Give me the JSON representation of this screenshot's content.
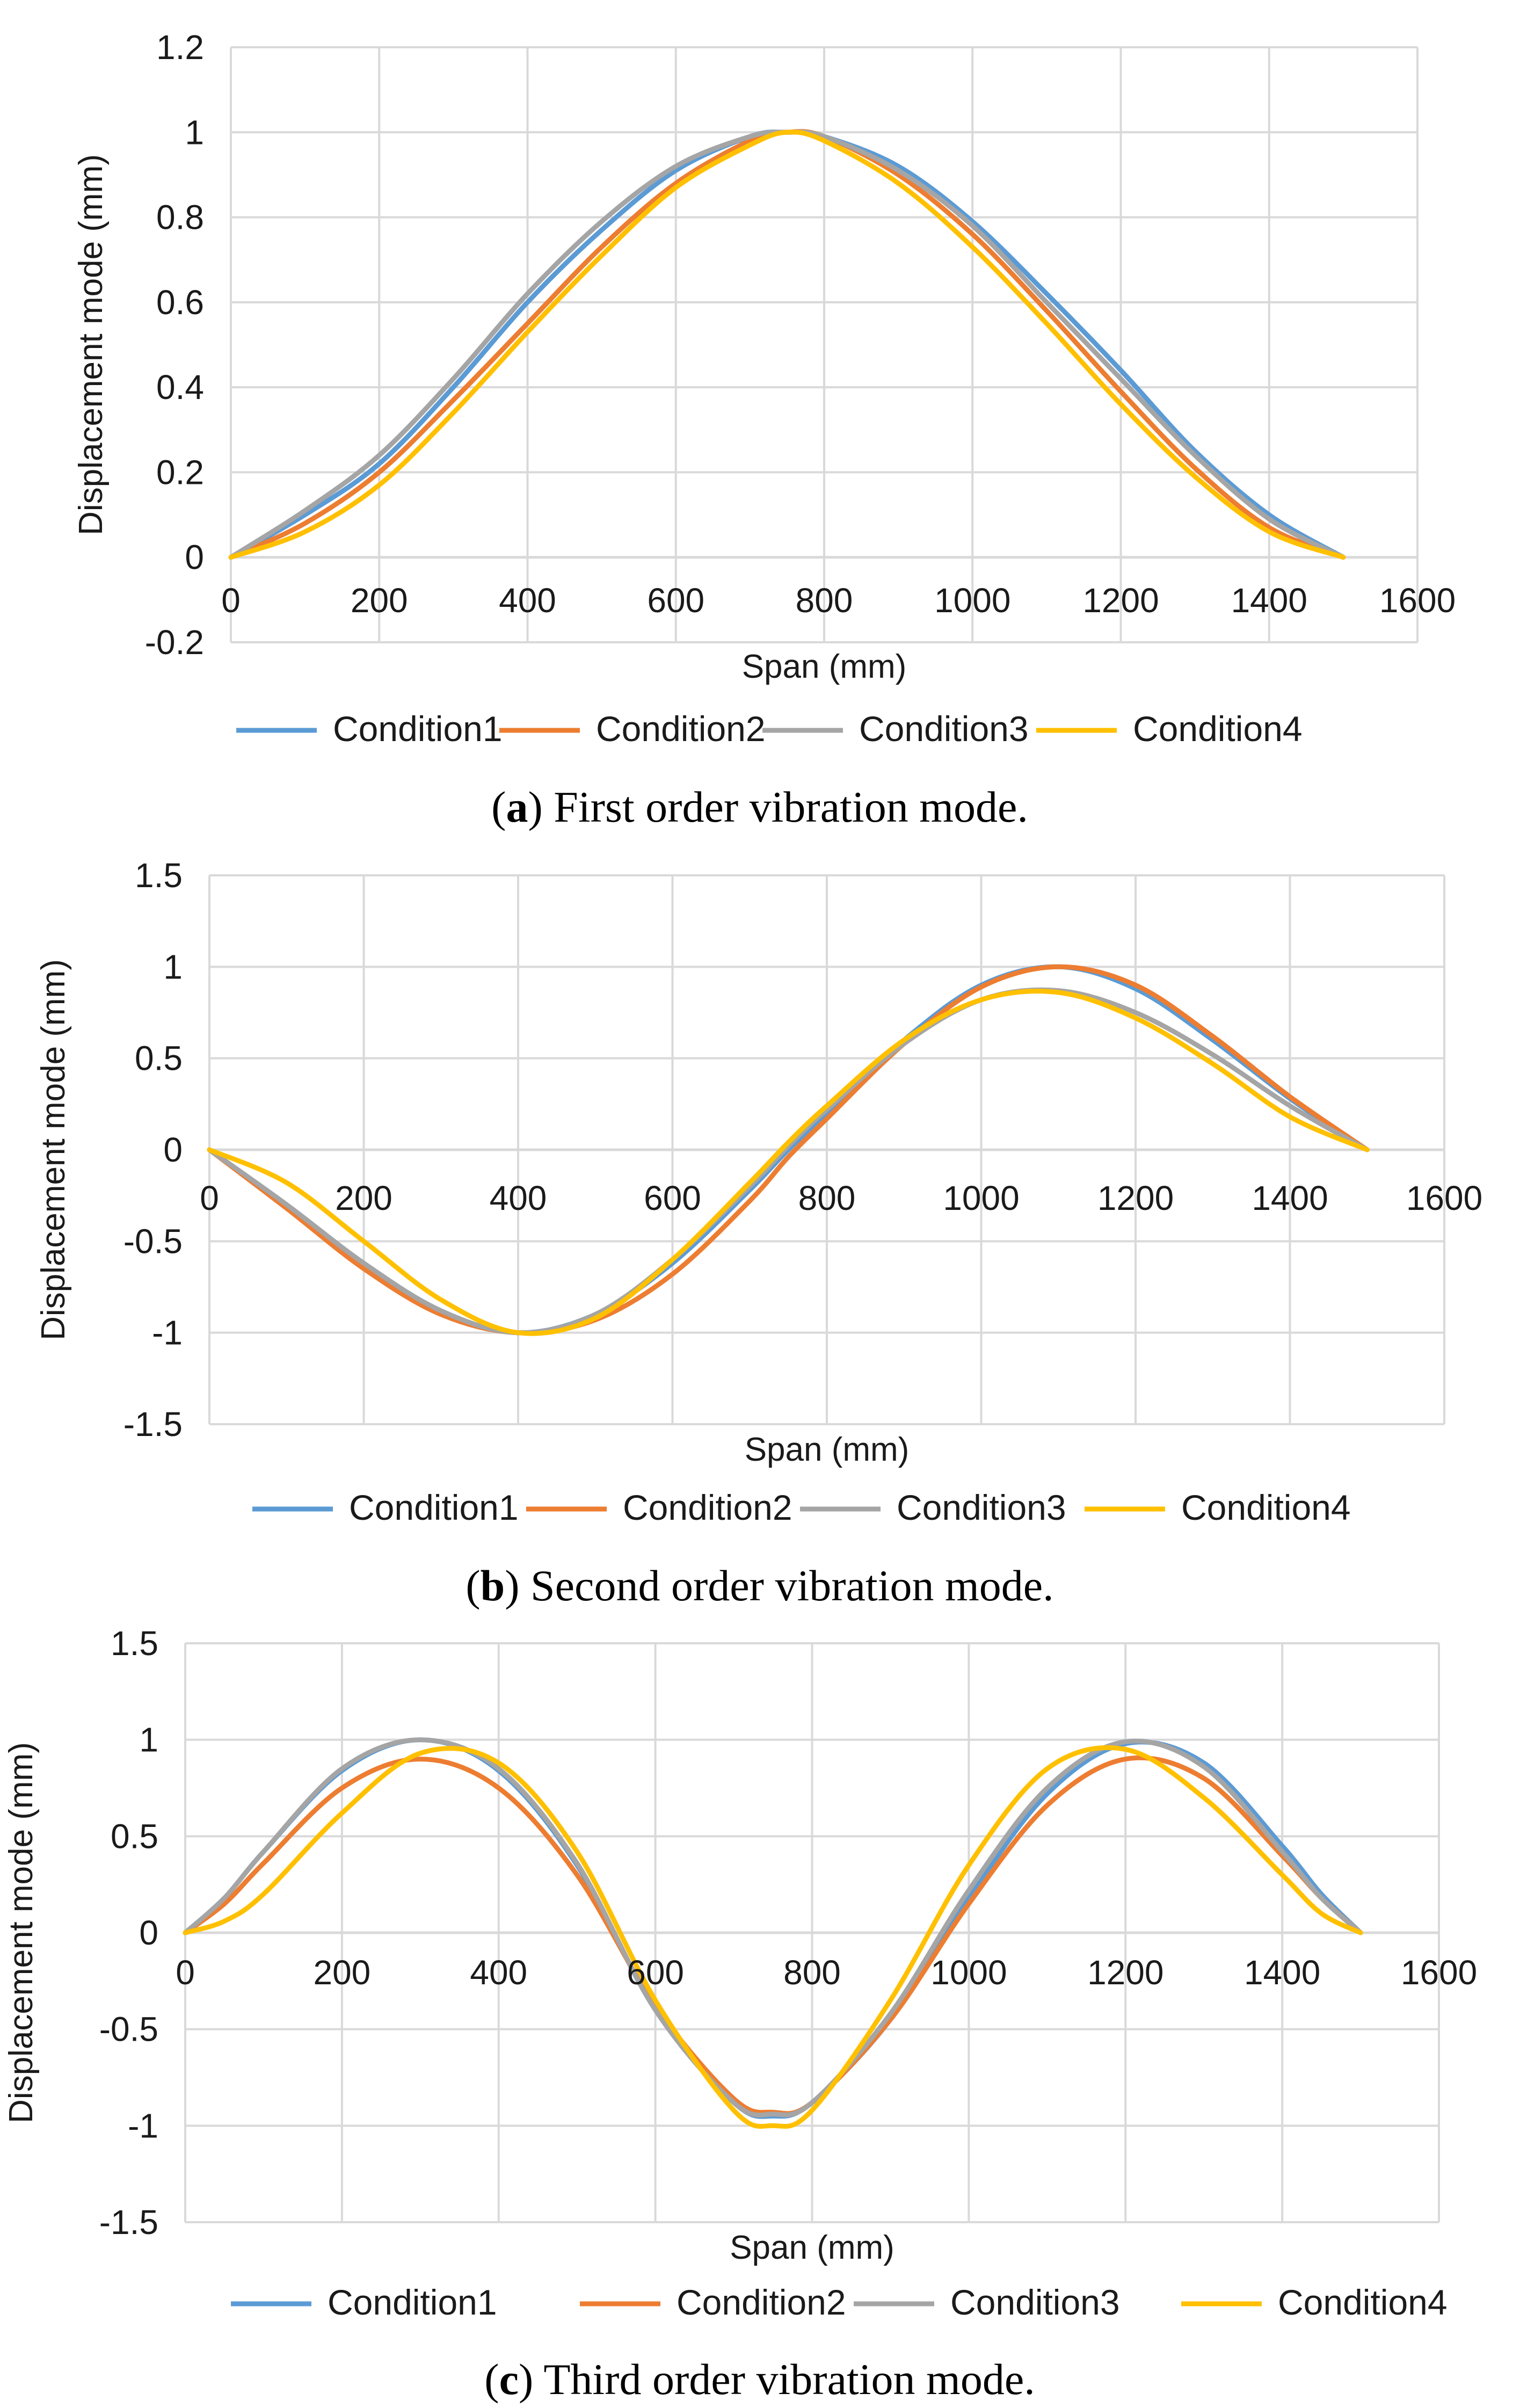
{
  "chart_data": [
    {
      "type": "line",
      "panel": "a",
      "caption_letter": "a",
      "caption_text": "First order vibration mode.",
      "xlabel": "Span (mm)",
      "ylabel": "Displacement mode (mm)",
      "xlim": [
        0,
        1600
      ],
      "ylim": [
        -0.2,
        1.2
      ],
      "xticks": [
        "0",
        "200",
        "400",
        "600",
        "800",
        "1000",
        "1200",
        "1400",
        "1600"
      ],
      "yticks": [
        "-0.2",
        "0",
        "0.2",
        "0.4",
        "0.6",
        "0.8",
        "1",
        "1.2"
      ],
      "series": [
        {
          "name": "Condition1",
          "color": "#5b9bd5",
          "x": [
            0,
            100,
            200,
            300,
            400,
            500,
            600,
            700,
            750,
            800,
            900,
            1000,
            1100,
            1200,
            1300,
            1400,
            1500
          ],
          "values": [
            0,
            0.1,
            0.22,
            0.4,
            0.6,
            0.77,
            0.91,
            0.99,
            1.0,
            0.99,
            0.92,
            0.79,
            0.62,
            0.44,
            0.25,
            0.1,
            0
          ]
        },
        {
          "name": "Condition2",
          "color": "#ed7d31",
          "x": [
            0,
            100,
            200,
            300,
            400,
            500,
            600,
            700,
            750,
            800,
            900,
            1000,
            1100,
            1200,
            1300,
            1400,
            1500
          ],
          "values": [
            0,
            0.08,
            0.2,
            0.37,
            0.55,
            0.73,
            0.88,
            0.98,
            1.0,
            0.99,
            0.9,
            0.76,
            0.58,
            0.39,
            0.21,
            0.07,
            0
          ]
        },
        {
          "name": "Condition3",
          "color": "#a5a5a5",
          "x": [
            0,
            100,
            200,
            300,
            400,
            500,
            600,
            700,
            750,
            800,
            900,
            1000,
            1100,
            1200,
            1300,
            1400,
            1500
          ],
          "values": [
            0,
            0.11,
            0.24,
            0.42,
            0.62,
            0.79,
            0.92,
            0.99,
            1.0,
            0.99,
            0.91,
            0.78,
            0.6,
            0.42,
            0.24,
            0.09,
            0
          ]
        },
        {
          "name": "Condition4",
          "color": "#ffc000",
          "x": [
            0,
            100,
            200,
            300,
            400,
            500,
            600,
            700,
            750,
            800,
            900,
            1000,
            1100,
            1200,
            1300,
            1400,
            1500
          ],
          "values": [
            0,
            0.06,
            0.17,
            0.34,
            0.53,
            0.71,
            0.87,
            0.97,
            1.0,
            0.98,
            0.88,
            0.73,
            0.55,
            0.36,
            0.19,
            0.06,
            0
          ]
        }
      ]
    },
    {
      "type": "line",
      "panel": "b",
      "caption_letter": "b",
      "caption_text": "Second order vibration mode.",
      "xlabel": "Span (mm)",
      "ylabel": "Displacement mode (mm)",
      "xlim": [
        0,
        1600
      ],
      "ylim": [
        -1.5,
        1.5
      ],
      "xticks": [
        "0",
        "200",
        "400",
        "600",
        "800",
        "1000",
        "1200",
        "1400",
        "1600"
      ],
      "yticks": [
        "-1.5",
        "-1",
        "-0.5",
        "0",
        "0.5",
        "1",
        "1.5"
      ],
      "series": [
        {
          "name": "Condition1",
          "color": "#5b9bd5",
          "x": [
            0,
            100,
            200,
            300,
            400,
            500,
            600,
            700,
            750,
            800,
            900,
            1000,
            1100,
            1200,
            1300,
            1400,
            1500
          ],
          "values": [
            0,
            -0.3,
            -0.62,
            -0.88,
            -1.0,
            -0.9,
            -0.62,
            -0.22,
            0.0,
            0.2,
            0.6,
            0.9,
            1.0,
            0.88,
            0.6,
            0.28,
            0
          ]
        },
        {
          "name": "Condition2",
          "color": "#ed7d31",
          "x": [
            0,
            100,
            200,
            300,
            400,
            500,
            600,
            700,
            750,
            800,
            900,
            1000,
            1100,
            1200,
            1300,
            1400,
            1500
          ],
          "values": [
            0,
            -0.32,
            -0.65,
            -0.9,
            -1.0,
            -0.93,
            -0.68,
            -0.28,
            -0.04,
            0.17,
            0.58,
            0.89,
            1.0,
            0.9,
            0.62,
            0.29,
            0
          ]
        },
        {
          "name": "Condition3",
          "color": "#a5a5a5",
          "x": [
            0,
            100,
            200,
            300,
            400,
            500,
            600,
            700,
            750,
            800,
            900,
            1000,
            1100,
            1200,
            1300,
            1400,
            1500
          ],
          "values": [
            0,
            -0.3,
            -0.62,
            -0.88,
            -1.0,
            -0.9,
            -0.6,
            -0.2,
            0.02,
            0.22,
            0.58,
            0.82,
            0.87,
            0.75,
            0.52,
            0.24,
            0
          ]
        },
        {
          "name": "Condition4",
          "color": "#ffc000",
          "x": [
            0,
            100,
            200,
            300,
            400,
            500,
            600,
            700,
            750,
            800,
            900,
            1000,
            1100,
            1200,
            1300,
            1400,
            1500
          ],
          "values": [
            0,
            -0.18,
            -0.5,
            -0.82,
            -1.0,
            -0.92,
            -0.6,
            -0.18,
            0.04,
            0.24,
            0.6,
            0.82,
            0.86,
            0.72,
            0.47,
            0.18,
            0
          ]
        }
      ]
    },
    {
      "type": "line",
      "panel": "c",
      "caption_letter": "c",
      "caption_text": "Third order vibration mode.",
      "xlabel": "Span (mm)",
      "ylabel": "Displacement mode (mm)",
      "xlim": [
        0,
        1600
      ],
      "ylim": [
        -1.5,
        1.5
      ],
      "xticks": [
        "0",
        "200",
        "400",
        "600",
        "800",
        "1000",
        "1200",
        "1400",
        "1600"
      ],
      "yticks": [
        "-1.5",
        "-1",
        "-0.5",
        "0",
        "0.5",
        "1",
        "1.5"
      ],
      "series": [
        {
          "name": "Condition1",
          "color": "#5b9bd5",
          "x": [
            0,
            50,
            100,
            200,
            300,
            400,
            500,
            600,
            700,
            750,
            800,
            900,
            1000,
            1100,
            1200,
            1300,
            1400,
            1450,
            1500
          ],
          "values": [
            0,
            0.18,
            0.42,
            0.84,
            1.0,
            0.84,
            0.35,
            -0.4,
            -0.88,
            -0.95,
            -0.88,
            -0.45,
            0.18,
            0.72,
            0.98,
            0.88,
            0.45,
            0.2,
            0
          ]
        },
        {
          "name": "Condition2",
          "color": "#ed7d31",
          "x": [
            0,
            50,
            100,
            200,
            300,
            400,
            500,
            600,
            700,
            750,
            800,
            900,
            1000,
            1100,
            1200,
            1300,
            1400,
            1450,
            1500
          ],
          "values": [
            0,
            0.15,
            0.36,
            0.75,
            0.9,
            0.75,
            0.3,
            -0.38,
            -0.86,
            -0.93,
            -0.88,
            -0.45,
            0.15,
            0.66,
            0.9,
            0.8,
            0.4,
            0.18,
            0
          ]
        },
        {
          "name": "Condition3",
          "color": "#a5a5a5",
          "x": [
            0,
            50,
            100,
            200,
            300,
            400,
            500,
            600,
            700,
            750,
            800,
            900,
            1000,
            1100,
            1200,
            1300,
            1400,
            1450,
            1500
          ],
          "values": [
            0,
            0.18,
            0.42,
            0.85,
            1.0,
            0.85,
            0.36,
            -0.4,
            -0.88,
            -0.94,
            -0.88,
            -0.42,
            0.22,
            0.75,
            0.99,
            0.86,
            0.42,
            0.18,
            0
          ]
        },
        {
          "name": "Condition4",
          "color": "#ffc000",
          "x": [
            0,
            50,
            100,
            200,
            300,
            400,
            500,
            600,
            700,
            750,
            800,
            900,
            1000,
            1100,
            1200,
            1300,
            1400,
            1450,
            1500
          ],
          "values": [
            0,
            0.06,
            0.2,
            0.62,
            0.93,
            0.88,
            0.42,
            -0.35,
            -0.92,
            -1.0,
            -0.92,
            -0.35,
            0.35,
            0.85,
            0.95,
            0.7,
            0.3,
            0.1,
            0
          ]
        }
      ]
    }
  ]
}
